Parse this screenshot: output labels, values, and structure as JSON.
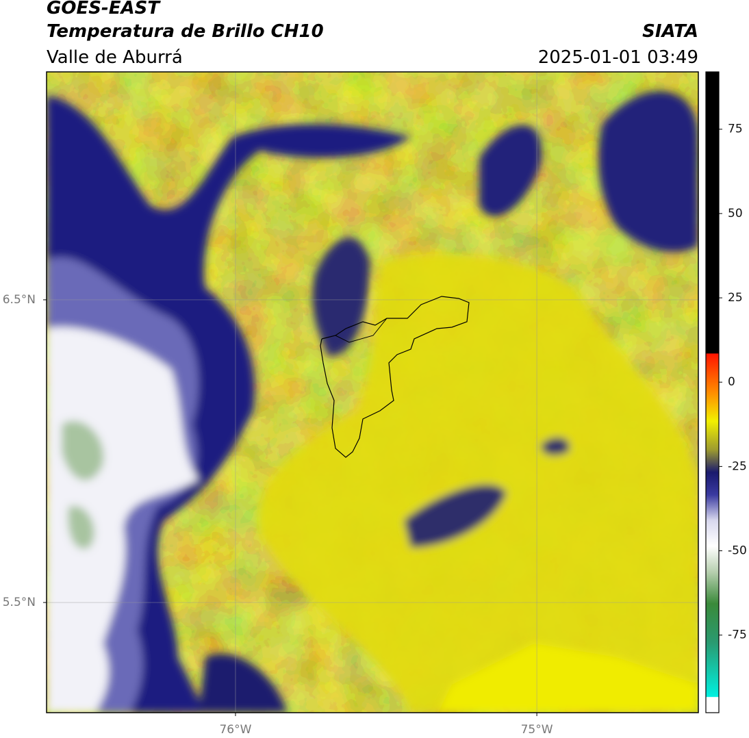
{
  "header": {
    "title": "GOES-EAST",
    "subtitle": "Temperatura de Brillo CH10",
    "region": "Valle de Aburrá",
    "source": "SIATA",
    "datetime": "2025-01-01 03:49"
  },
  "map": {
    "xlim": [
      -76.627,
      -74.464
    ],
    "ylim": [
      5.136,
      7.253
    ],
    "xticks": [
      {
        "value": -76,
        "label": "76°W"
      },
      {
        "value": -75,
        "label": "75°W"
      }
    ],
    "yticks": [
      {
        "value": 6.5,
        "label": "6.5°N"
      },
      {
        "value": 5.5,
        "label": "5.5°N"
      }
    ],
    "grid": true
  },
  "colorbar": {
    "lim": [
      -98,
      92
    ],
    "ticks": [
      75,
      50,
      25,
      0,
      -25,
      -50,
      -75
    ]
  }
}
